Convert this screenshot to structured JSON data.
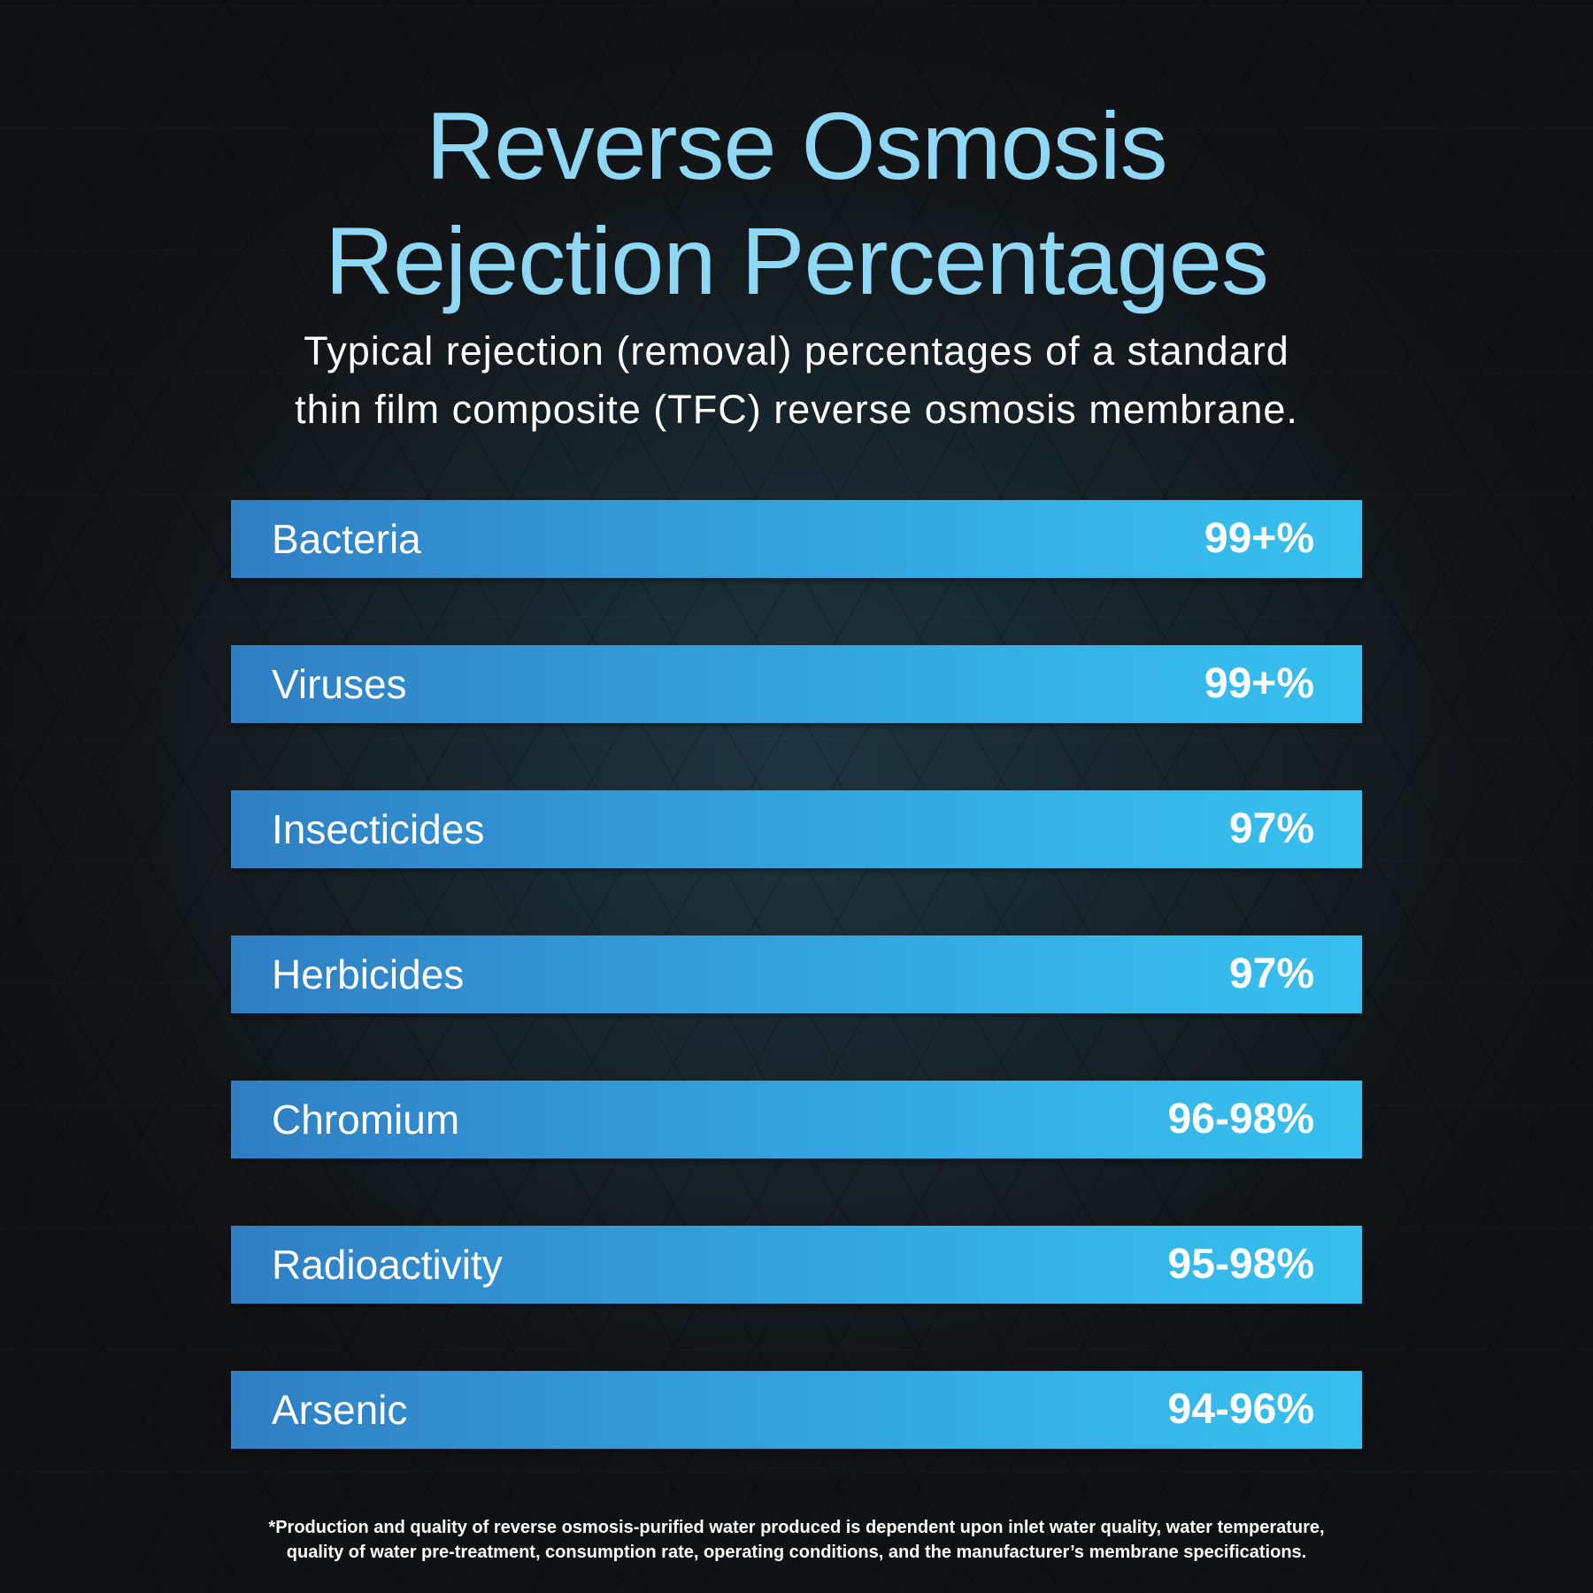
{
  "title_lines": [
    "Reverse Osmosis",
    "Rejection Percentages"
  ],
  "subtitle_lines": [
    "Typical rejection (removal) percentages of a standard",
    "thin film composite (TFC) reverse osmosis membrane."
  ],
  "colors": {
    "title": "#8fd8f5",
    "bar_start": "#2f7ec4",
    "bar_end": "#37c0ef"
  },
  "chart_data": {
    "type": "table",
    "rows": [
      {
        "label": "Bacteria",
        "value": "99+%"
      },
      {
        "label": "Viruses",
        "value": "99+%"
      },
      {
        "label": "Insecticides",
        "value": "97%"
      },
      {
        "label": "Herbicides",
        "value": "97%"
      },
      {
        "label": "Chromium",
        "value": "96-98%"
      },
      {
        "label": "Radioactivity",
        "value": "95-98%"
      },
      {
        "label": "Arsenic",
        "value": "94-96%"
      }
    ]
  },
  "footnote_lines": [
    "*Production and quality of reverse osmosis-purified water produced is dependent upon inlet water quality, water temperature,",
    "quality of water pre-treatment, consumption rate, operating conditions, and the manufacturer’s membrane specifications."
  ]
}
